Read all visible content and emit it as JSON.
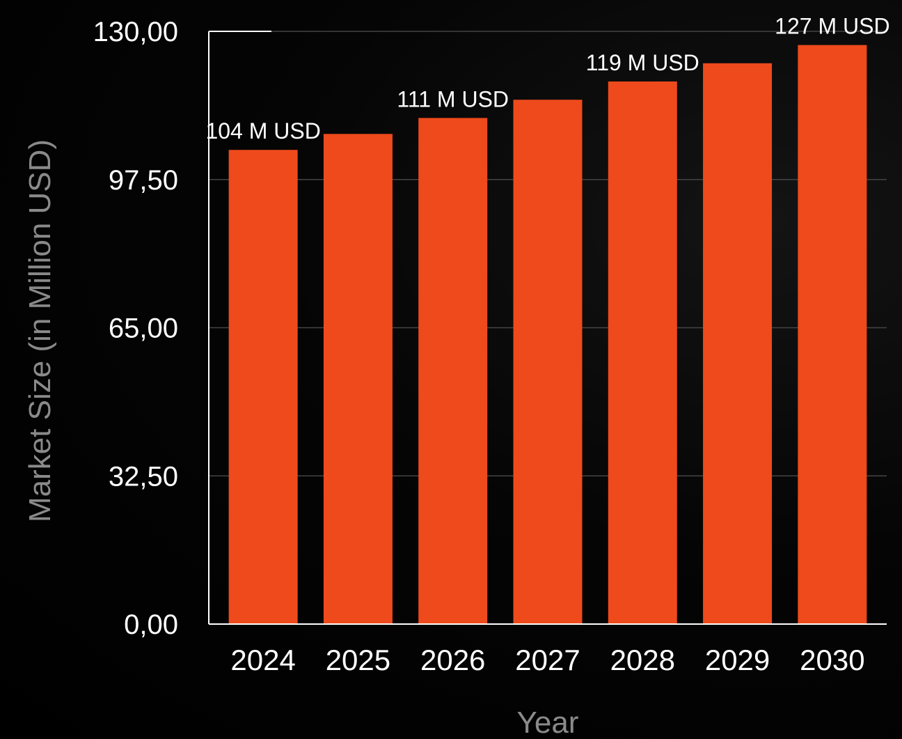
{
  "chart_data": {
    "type": "bar",
    "categories": [
      "2024",
      "2025",
      "2026",
      "2027",
      "2028",
      "2029",
      "2030"
    ],
    "values": [
      104,
      107.5,
      111,
      115,
      119,
      123,
      127
    ],
    "data_labels": [
      "104 M USD",
      "",
      "111 M USD",
      "",
      "119 M USD",
      "",
      "127 M USD"
    ],
    "xlabel": "Year",
    "ylabel": "Market Size (in Million USD)",
    "ylim": [
      0,
      130
    ],
    "yticks": [
      0,
      32.5,
      65,
      97.5,
      130
    ],
    "ytick_labels": [
      "0,00",
      "32,50",
      "65,00",
      "97,50",
      "130,00"
    ],
    "grid": true,
    "colors": {
      "bar": "#ee4a1c",
      "background": "#000000",
      "grid": "#444444",
      "text": "#ffffff",
      "axis_title": "#8a8a8a"
    }
  }
}
